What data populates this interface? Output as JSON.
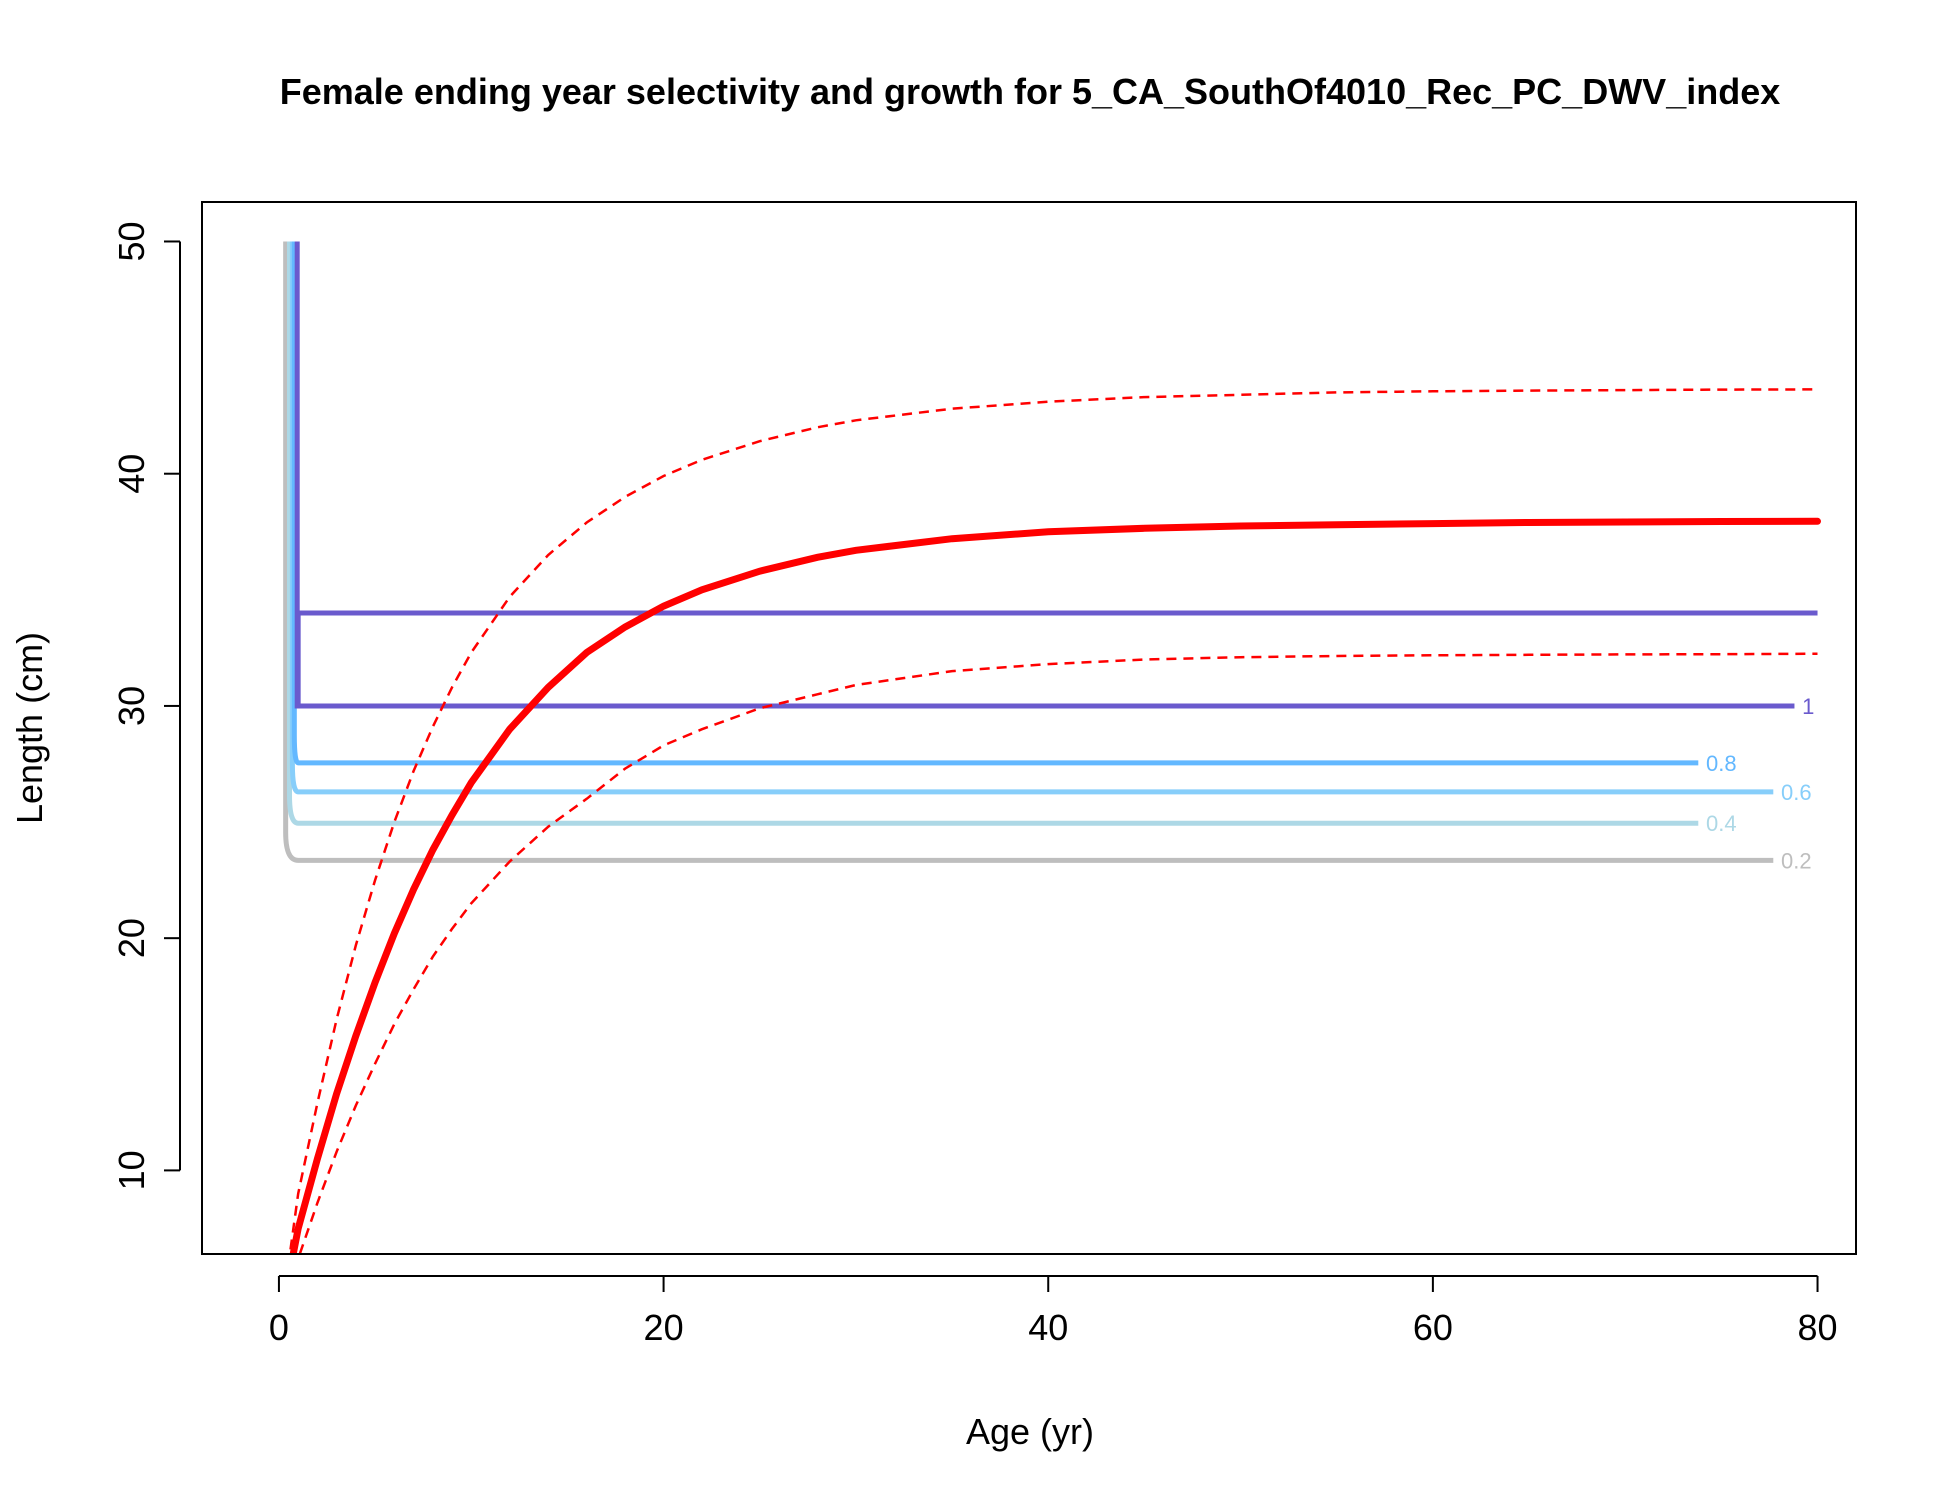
{
  "chart_data": {
    "type": "line",
    "title": "Female ending year selectivity and growth for 5_CA_SouthOf4010_Rec_PC_DWV_index",
    "xlabel": "Age (yr)",
    "ylabel": "Length (cm)",
    "xlim": [
      -4,
      82
    ],
    "ylim": [
      6.4,
      51.7
    ],
    "x_ticks": [
      0,
      20,
      40,
      60,
      80
    ],
    "y_ticks": [
      10,
      20,
      30,
      40,
      50
    ],
    "x_tick_labels": [
      "0",
      "20",
      "40",
      "60",
      "80"
    ],
    "y_tick_labels": [
      "10",
      "20",
      "30",
      "40",
      "50"
    ],
    "grid": false,
    "growth": {
      "color": "#ff0000",
      "mean": {
        "x": [
          0.6,
          1,
          2,
          3,
          4,
          5,
          6,
          7,
          8,
          9,
          10,
          12,
          14,
          16,
          18,
          20,
          22,
          25,
          28,
          30,
          35,
          40,
          45,
          50,
          55,
          60,
          65,
          70,
          75,
          80
        ],
        "y": [
          5.8,
          7.5,
          10.5,
          13.3,
          15.8,
          18.1,
          20.2,
          22.1,
          23.8,
          25.3,
          26.7,
          29.0,
          30.8,
          32.3,
          33.4,
          34.3,
          35.0,
          35.8,
          36.4,
          36.7,
          37.2,
          37.5,
          37.65,
          37.75,
          37.8,
          37.85,
          37.9,
          37.92,
          37.94,
          37.95
        ]
      },
      "upper": {
        "x": [
          0.6,
          1,
          2,
          3,
          4,
          5,
          6,
          7,
          8,
          9,
          10,
          12,
          14,
          16,
          18,
          20,
          22,
          25,
          28,
          30,
          35,
          40,
          45,
          50,
          55,
          60,
          65,
          70,
          75,
          80
        ],
        "y": [
          6.6,
          9.0,
          12.9,
          16.5,
          19.7,
          22.5,
          25.0,
          27.2,
          29.1,
          30.8,
          32.3,
          34.7,
          36.5,
          37.9,
          39.0,
          39.9,
          40.6,
          41.4,
          42.0,
          42.3,
          42.8,
          43.1,
          43.3,
          43.4,
          43.5,
          43.55,
          43.58,
          43.6,
          43.62,
          43.63
        ]
      },
      "lower": {
        "x": [
          0.6,
          1,
          2,
          3,
          4,
          5,
          6,
          7,
          8,
          9,
          10,
          12,
          14,
          16,
          18,
          20,
          22,
          25,
          28,
          30,
          35,
          40,
          45,
          50,
          55,
          60,
          65,
          70,
          75,
          80
        ],
        "y": [
          5.0,
          6.2,
          8.6,
          10.8,
          12.8,
          14.6,
          16.3,
          17.8,
          19.2,
          20.4,
          21.5,
          23.3,
          24.8,
          26.0,
          27.3,
          28.3,
          29.0,
          29.9,
          30.5,
          30.9,
          31.5,
          31.8,
          32.0,
          32.1,
          32.15,
          32.18,
          32.2,
          32.22,
          32.23,
          32.25
        ]
      }
    },
    "selectivity_contours": [
      {
        "level": "1",
        "color": "#6a5acd",
        "x_start": 1.0,
        "x_end": 78.8,
        "y": 30.0,
        "label_x": 79.2,
        "upper_y": 34.0,
        "upper_x_end": 80
      },
      {
        "level": "0.8",
        "color": "#63b8ff",
        "x_start": 1.0,
        "x_end": 73.8,
        "y": 27.55,
        "label_x": 74.2
      },
      {
        "level": "0.6",
        "color": "#87cefa",
        "x_start": 1.0,
        "x_end": 77.7,
        "y": 26.3,
        "label_x": 78.1
      },
      {
        "level": "0.4",
        "color": "#add8e6",
        "x_start": 1.0,
        "x_end": 73.8,
        "y": 24.95,
        "label_x": 74.2
      },
      {
        "level": "0.2",
        "color": "#bebebe",
        "x_start": 1.0,
        "x_end": 77.7,
        "y": 23.35,
        "label_x": 78.1
      }
    ]
  }
}
